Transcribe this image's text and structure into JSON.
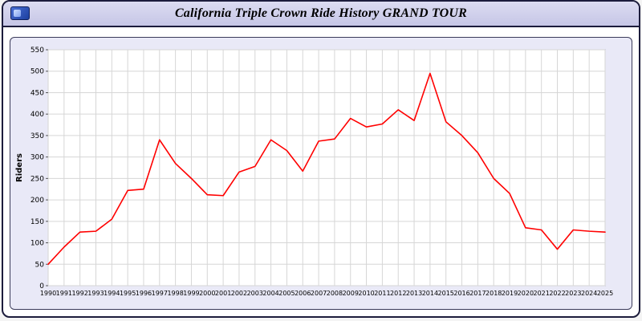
{
  "window": {
    "title": "California Triple Crown Ride History GRAND TOUR",
    "icon": "app-logo-icon"
  },
  "chart_data": {
    "type": "line",
    "title": "California Triple Crown Ride History GRAND TOUR",
    "xlabel": "",
    "ylabel": "Riders",
    "ylim": [
      0,
      550
    ],
    "yticks": [
      0,
      50,
      100,
      150,
      200,
      250,
      300,
      350,
      400,
      450,
      500,
      550
    ],
    "grid": true,
    "legend_position": "none",
    "line_color": "#ff0000",
    "grid_color": "#d6d6d6",
    "plot_bg": "#ffffff",
    "panel_bg": "#e9e9f7",
    "x": [
      1990,
      1991,
      1992,
      1993,
      1994,
      1995,
      1996,
      1997,
      1998,
      1999,
      2000,
      2001,
      2002,
      2003,
      2004,
      2005,
      2006,
      2007,
      2008,
      2009,
      2010,
      2011,
      2012,
      2013,
      2014,
      2015,
      2016,
      2017,
      2018,
      2019,
      2020,
      2021,
      2022,
      2023,
      2024,
      2025
    ],
    "series": [
      {
        "name": "Riders",
        "values": [
          50,
          90,
          125,
          127,
          155,
          222,
          225,
          340,
          285,
          250,
          212,
          210,
          265,
          278,
          340,
          315,
          267,
          337,
          342,
          390,
          370,
          377,
          410,
          385,
          495,
          382,
          350,
          310,
          250,
          215,
          135,
          130,
          85,
          130,
          127,
          125
        ]
      }
    ]
  }
}
